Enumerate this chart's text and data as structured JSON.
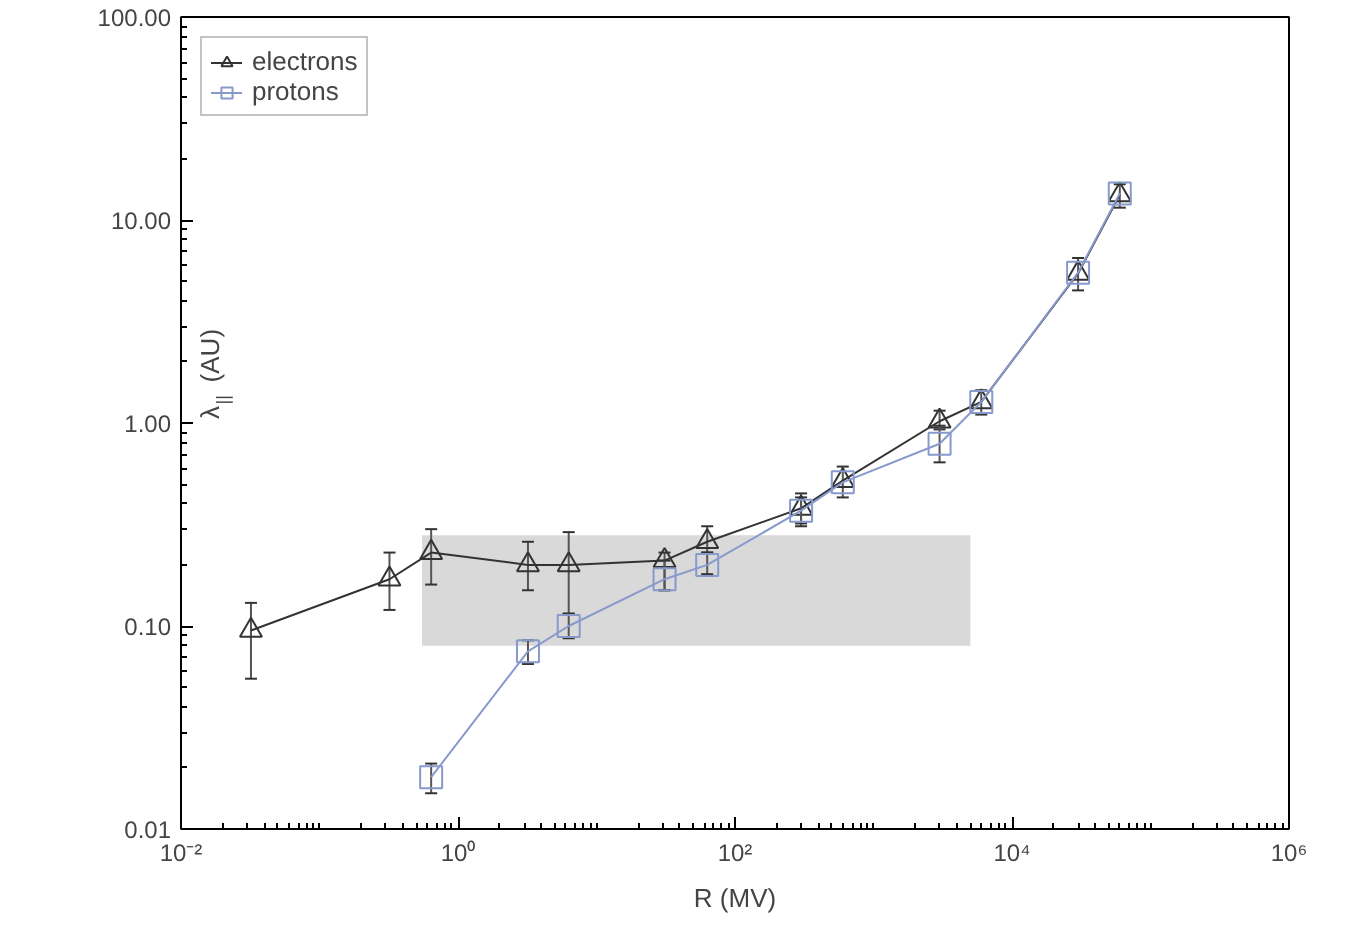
{
  "chart_data": {
    "type": "line",
    "xlabel": "R (MV)",
    "ylabel": "λ$_{||}$ (AU)",
    "log": "xy",
    "grid": false,
    "legend": "top left",
    "line_style": "solid",
    "xlim": [
      0.01,
      1000000
    ],
    "ylim": [
      0.01,
      100
    ],
    "xticks": [
      {
        "value": 0.01,
        "label": "10⁻²"
      },
      {
        "value": 1,
        "label": "10⁰"
      },
      {
        "value": 100,
        "label": "10²"
      },
      {
        "value": 10000,
        "label": "10⁴"
      },
      {
        "value": 1000000,
        "label": "10⁶"
      }
    ],
    "yticks": [
      {
        "value": 0.01,
        "label": "0.01"
      },
      {
        "value": 0.1,
        "label": "0.10"
      },
      {
        "value": 1,
        "label": "1.00"
      },
      {
        "value": 10,
        "label": "10.00"
      },
      {
        "value": 100,
        "label": "100.00"
      }
    ],
    "series": [
      {
        "type": "area",
        "color": "#d9d9d9",
        "x": [
          0.55,
          5000
        ],
        "values": [
          null,
          null
        ],
        "lower": [
          0.08,
          0.08
        ],
        "upper": [
          0.28,
          0.28
        ]
      },
      {
        "name": "electrons",
        "color": "#333333",
        "marker": "triangle",
        "x": [
          0.032,
          0.32,
          0.64,
          3.2,
          6.3,
          31,
          63,
          300,
          600,
          3000,
          6000,
          30000,
          60000
        ],
        "values": [
          0.095,
          0.17,
          0.23,
          0.2,
          0.2,
          0.21,
          0.26,
          0.38,
          0.52,
          1.02,
          1.27,
          5.45,
          13.3
        ],
        "errors": [
          [
            0.055,
            0.13
          ],
          [
            0.12,
            0.23
          ],
          [
            0.16,
            0.3
          ],
          [
            0.15,
            0.26
          ],
          [
            0.115,
            0.29
          ],
          [
            0.15,
            0.23
          ],
          [
            0.23,
            0.31
          ],
          [
            0.31,
            0.45
          ],
          [
            0.43,
            0.61
          ],
          [
            0.93,
            1.15
          ],
          [
            1.1,
            1.45
          ],
          [
            4.5,
            6.5
          ],
          [
            11.5,
            15
          ]
        ]
      },
      {
        "name": "protons",
        "color": "#8899cc",
        "marker": "square",
        "x": [
          0.64,
          3.2,
          6.3,
          31,
          63,
          300,
          600,
          3000,
          6000,
          30000,
          60000
        ],
        "values": [
          0.018,
          0.075,
          0.1,
          0.17,
          0.2,
          0.37,
          0.51,
          0.79,
          1.27,
          5.5,
          13.5
        ],
        "errors": [
          [
            0.015,
            0.021
          ],
          [
            0.065,
            0.085
          ],
          [
            0.087,
            0.115
          ],
          [
            0.15,
            0.21
          ],
          [
            0.18,
            0.23
          ],
          [
            0.32,
            0.43
          ],
          null,
          [
            0.64,
            0.97
          ],
          null,
          null,
          null
        ]
      }
    ]
  }
}
